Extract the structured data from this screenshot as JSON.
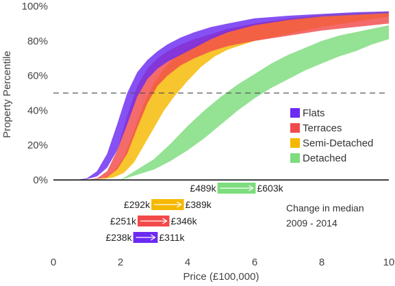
{
  "chart_data": {
    "type": "area",
    "xlabel": "Price (£100,000)",
    "ylabel": "Property Percentile",
    "xlim": [
      0,
      10
    ],
    "ylim": [
      0,
      100
    ],
    "x_ticks": [
      "0",
      "2",
      "4",
      "6",
      "8",
      "10"
    ],
    "y_ticks": [
      "0%",
      "20%",
      "40%",
      "60%",
      "80%",
      "100%"
    ],
    "reference_line": {
      "y": 50,
      "style": "dashed"
    },
    "legend_position": "right",
    "series": [
      {
        "name": "Flats",
        "color": "#6b2bf2",
        "x": [
          0.7,
          1.0,
          1.3,
          1.6,
          1.9,
          2.2,
          2.5,
          2.8,
          3.1,
          3.4,
          3.8,
          4.2,
          4.7,
          5.2,
          6.0,
          7.0,
          8.0,
          9.0,
          10.0
        ],
        "lower": [
          0,
          0.5,
          2,
          7,
          17,
          32,
          48,
          58,
          64,
          68,
          72,
          76,
          81,
          85,
          89,
          92,
          94,
          95,
          96
        ],
        "upper": [
          0,
          1,
          5,
          15,
          32,
          50,
          62,
          69,
          74,
          78,
          82,
          85,
          88,
          90,
          93,
          94.5,
          95.5,
          96.5,
          97
        ]
      },
      {
        "name": "Terraces",
        "color": "#f24a4a",
        "x": [
          1.0,
          1.3,
          1.6,
          1.9,
          2.2,
          2.5,
          2.8,
          3.1,
          3.4,
          3.8,
          4.2,
          4.7,
          5.2,
          6.0,
          7.0,
          8.0,
          9.0,
          10.0
        ],
        "lower": [
          0,
          0.5,
          1.5,
          6,
          15,
          30,
          44,
          54,
          60,
          66,
          70,
          74,
          77,
          80,
          83,
          86,
          88,
          90
        ],
        "upper": [
          0,
          1,
          5,
          17,
          37,
          54,
          64,
          70,
          74,
          78,
          81,
          84,
          87,
          90,
          92.5,
          94,
          95,
          96
        ]
      },
      {
        "name": "Semi-Detached",
        "color": "#f5b800",
        "x": [
          1.2,
          1.5,
          1.8,
          2.1,
          2.4,
          2.7,
          3.0,
          3.3,
          3.6,
          4.0,
          4.4,
          4.8,
          5.2,
          6.0,
          7.0,
          8.0,
          9.0,
          10.0
        ],
        "lower": [
          0,
          0.5,
          1.5,
          4,
          10,
          20,
          30,
          40,
          48,
          57,
          65,
          71,
          75,
          80,
          84,
          88,
          91,
          94
        ],
        "upper": [
          0,
          1,
          5,
          13,
          28,
          44,
          56,
          64,
          70,
          76,
          80,
          83,
          86,
          90,
          93,
          95,
          96,
          97
        ]
      },
      {
        "name": "Detached",
        "color": "#7ddc7d",
        "x": [
          2.0,
          2.5,
          3.0,
          3.5,
          4.0,
          4.5,
          5.0,
          5.5,
          6.0,
          6.5,
          7.0,
          7.5,
          8.0,
          8.5,
          9.0,
          9.5,
          10.0
        ],
        "lower": [
          0,
          3,
          6,
          11,
          17,
          24,
          32,
          40,
          47,
          53,
          58,
          63,
          67,
          71,
          74,
          78,
          81
        ],
        "upper": [
          0,
          6,
          12,
          21,
          31,
          40,
          48,
          55,
          61,
          67,
          72,
          76,
          80,
          83,
          85,
          87,
          89
        ]
      }
    ],
    "median_changes": {
      "title_line1": "Change in median",
      "title_line2": "2009 - 2014",
      "items": [
        {
          "name": "Detached",
          "from": 4.89,
          "to": 6.03,
          "from_label": "£489k",
          "to_label": "£603k",
          "color": "#7ddc7d"
        },
        {
          "name": "Semi-Detached",
          "from": 2.92,
          "to": 3.89,
          "from_label": "£292k",
          "to_label": "£389k",
          "color": "#f5b800"
        },
        {
          "name": "Terraces",
          "from": 2.51,
          "to": 3.46,
          "from_label": "£251k",
          "to_label": "£346k",
          "color": "#f24a4a"
        },
        {
          "name": "Flats",
          "from": 2.38,
          "to": 3.11,
          "from_label": "£238k",
          "to_label": "£311k",
          "color": "#6b2bf2"
        }
      ]
    }
  }
}
